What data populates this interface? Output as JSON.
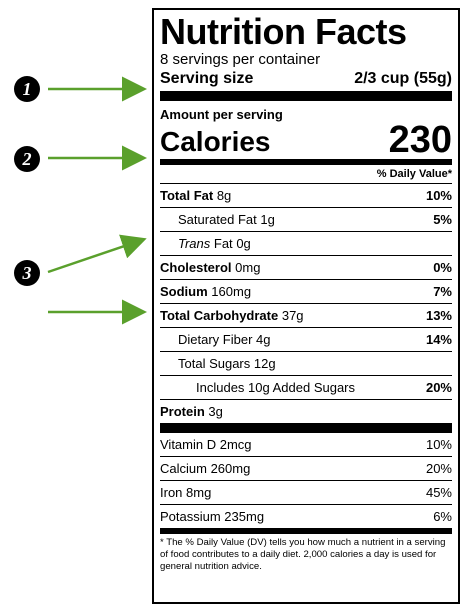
{
  "markers": [
    "1",
    "2",
    "3"
  ],
  "label": {
    "title": "Nutrition Facts",
    "servings_per_container": "8 servings per container",
    "serving_size_label": "Serving size",
    "serving_size_value": "2/3 cup (55g)",
    "amount_per_serving": "Amount per serving",
    "calories_label": "Calories",
    "calories_value": "230",
    "dv_header": "% Daily Value*",
    "nutrients": [
      {
        "name": "Total Fat",
        "amount": "8g",
        "dv": "10%"
      },
      {
        "name": "Saturated Fat",
        "amount": "1g",
        "dv": "5%"
      },
      {
        "name": "Trans",
        "name_rest": "Fat",
        "amount": "0g",
        "dv": ""
      },
      {
        "name": "Cholesterol",
        "amount": "0mg",
        "dv": "0%"
      },
      {
        "name": "Sodium",
        "amount": "160mg",
        "dv": "7%"
      },
      {
        "name": "Total Carbohydrate",
        "amount": "37g",
        "dv": "13%"
      },
      {
        "name": "Dietary Fiber",
        "amount": "4g",
        "dv": "14%"
      },
      {
        "name": "Total Sugars",
        "amount": "12g",
        "dv": ""
      },
      {
        "name": "Includes 10g Added Sugars",
        "amount": "",
        "dv": "20%"
      },
      {
        "name": "Protein",
        "amount": "3g",
        "dv": ""
      }
    ],
    "vitamins": [
      {
        "name": "Vitamin D 2mcg",
        "dv": "10%"
      },
      {
        "name": "Calcium 260mg",
        "dv": "20%"
      },
      {
        "name": "Iron 8mg",
        "dv": "45%"
      },
      {
        "name": "Potassium 235mg",
        "dv": "6%"
      }
    ],
    "footnote": "* The % Daily Value (DV) tells you how much a nutrient in a serving of food contributes to a daily diet. 2,000 calories a day is used for general nutrition advice."
  },
  "colors": {
    "arrow": "#5aa02c",
    "ink": "#000000"
  }
}
